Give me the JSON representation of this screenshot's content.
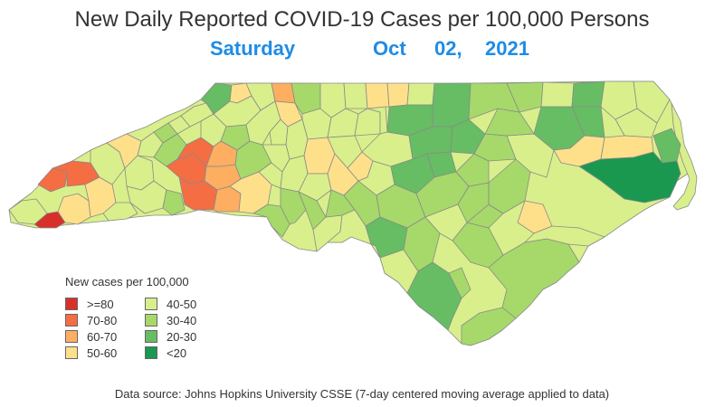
{
  "title": "New Daily Reported COVID-19 Cases per 100,000 Persons",
  "subtitle": {
    "weekday": "Saturday",
    "month": "Oct",
    "day": "02,",
    "year": "2021"
  },
  "legend": {
    "title": "New cases per 100,000",
    "items": [
      {
        "label": ">=80",
        "color": "#d7302a"
      },
      {
        "label": "70-80",
        "color": "#f46d43"
      },
      {
        "label": "60-70",
        "color": "#fdae61"
      },
      {
        "label": "50-60",
        "color": "#fee08b"
      },
      {
        "label": "40-50",
        "color": "#d9ef8b"
      },
      {
        "label": "30-40",
        "color": "#a6d96a"
      },
      {
        "label": "20-30",
        "color": "#66bd63"
      },
      {
        "label": "<20",
        "color": "#1a9850"
      }
    ]
  },
  "source": "Data source: Johns Hopkins University CSSE (7-day centered moving average applied to data)"
}
